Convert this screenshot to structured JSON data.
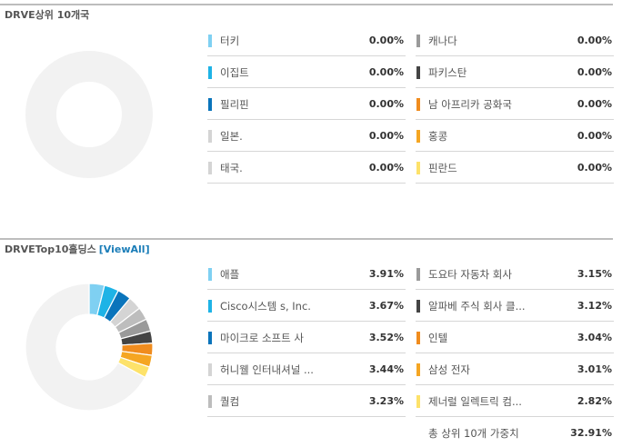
{
  "countries": {
    "title": "DRVE상위 10개국",
    "left": [
      {
        "name": "터키",
        "value": "0.00%",
        "color": "#7fd0f2"
      },
      {
        "name": "이집트",
        "value": "0.00%",
        "color": "#1eb3e6"
      },
      {
        "name": "필리핀",
        "value": "0.00%",
        "color": "#0a74bb"
      },
      {
        "name": "일본.",
        "value": "0.00%",
        "color": "#d4d4d4"
      },
      {
        "name": "태국.",
        "value": "0.00%",
        "color": "#d4d4d4"
      }
    ],
    "right": [
      {
        "name": "캐나다",
        "value": "0.00%",
        "color": "#9a9a9a"
      },
      {
        "name": "파키스탄",
        "value": "0.00%",
        "color": "#444444"
      },
      {
        "name": "남 아프리카 공화국",
        "value": "0.00%",
        "color": "#f08c1e"
      },
      {
        "name": "홍콩",
        "value": "0.00%",
        "color": "#f5a623"
      },
      {
        "name": "핀란드",
        "value": "0.00%",
        "color": "#fde26a"
      }
    ]
  },
  "holdings": {
    "title": "DRVETop10홀딩스",
    "view_all": "[ViewAll]",
    "left": [
      {
        "name": "애플",
        "value": "3.91%",
        "weight": 3.91,
        "color": "#7fd0f2"
      },
      {
        "name": "Cisco시스템 s, Inc.",
        "value": "3.67%",
        "weight": 3.67,
        "color": "#1eb3e6"
      },
      {
        "name": "마이크로 소프트 사",
        "value": "3.52%",
        "weight": 3.52,
        "color": "#0a74bb"
      },
      {
        "name": "허니웰 인터내셔널 ...",
        "value": "3.44%",
        "weight": 3.44,
        "color": "#d4d4d4"
      },
      {
        "name": "퀄컴",
        "value": "3.23%",
        "weight": 3.23,
        "color": "#bdbdbd"
      }
    ],
    "right": [
      {
        "name": "도요타 자동차 회사",
        "value": "3.15%",
        "weight": 3.15,
        "color": "#9a9a9a"
      },
      {
        "name": "알파베 주식 회사 클...",
        "value": "3.12%",
        "weight": 3.12,
        "color": "#444444"
      },
      {
        "name": "인텔",
        "value": "3.04%",
        "weight": 3.04,
        "color": "#f08c1e"
      },
      {
        "name": "삼성 전자",
        "value": "3.01%",
        "weight": 3.01,
        "color": "#f5a623"
      },
      {
        "name": "제너럴 일렉트릭 컴...",
        "value": "2.82%",
        "weight": 2.82,
        "color": "#fde26a"
      }
    ],
    "total_label": "총 상위 10개 가중치",
    "total_value": "32.91%",
    "remainder_color": "#f2f2f2"
  }
}
